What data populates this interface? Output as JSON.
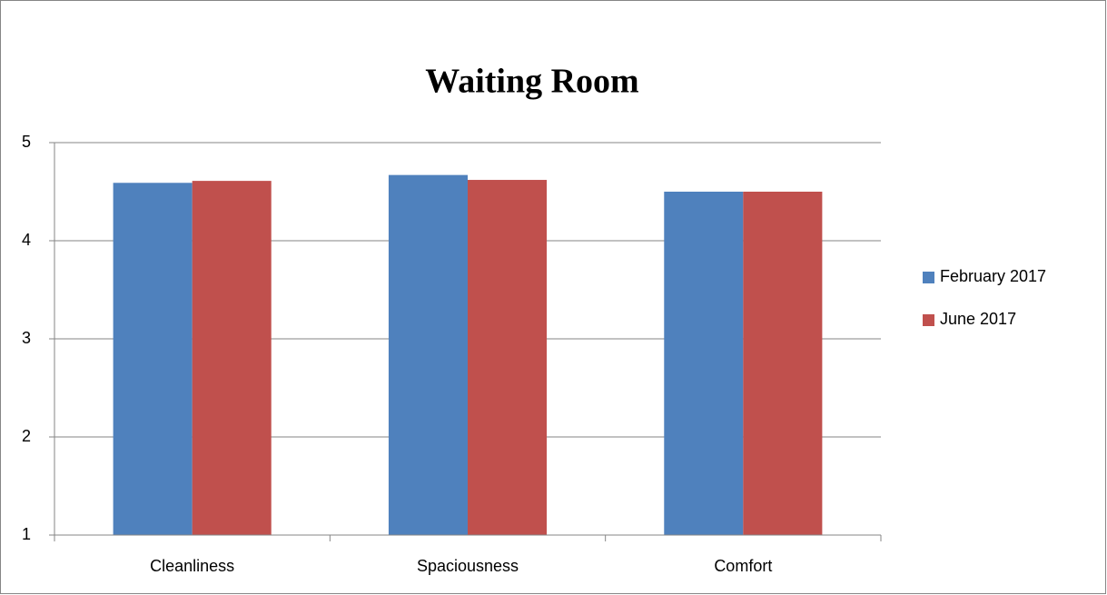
{
  "chart_data": {
    "type": "bar",
    "title": "Waiting Room",
    "categories": [
      "Cleanliness",
      "Spaciousness",
      "Comfort"
    ],
    "series": [
      {
        "name": "February 2017",
        "color": "#4f81bd",
        "values": [
          4.59,
          4.67,
          4.5
        ]
      },
      {
        "name": "June 2017",
        "color": "#c0504d",
        "values": [
          4.61,
          4.62,
          4.5
        ]
      }
    ],
    "ylim": [
      1,
      5
    ],
    "yticks": [
      1,
      2,
      3,
      4,
      5
    ],
    "grid": true,
    "legend": "right"
  }
}
